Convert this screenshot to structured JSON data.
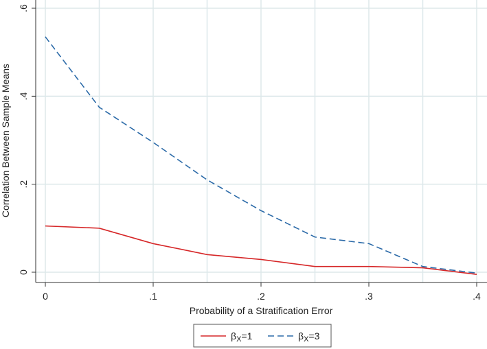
{
  "chart_data": {
    "type": "line",
    "title": "",
    "xlabel": "Probability of a Stratification Error",
    "ylabel": "Correlation Between Sample Means",
    "xlim": [
      0,
      0.4
    ],
    "ylim": [
      0,
      0.6
    ],
    "xticks": [
      0,
      0.1,
      0.2,
      0.3,
      0.4
    ],
    "xtick_labels": [
      "0",
      ".1",
      ".2",
      ".3",
      ".4"
    ],
    "yticks": [
      0,
      0.2,
      0.4,
      0.6
    ],
    "ytick_labels": [
      "0",
      ".2",
      ".4",
      ".6"
    ],
    "grid": true,
    "legend_position": "bottom",
    "x": [
      0,
      0.05,
      0.1,
      0.15,
      0.2,
      0.25,
      0.3,
      0.35,
      0.4
    ],
    "series": [
      {
        "name": "βX=1",
        "name_main": "β",
        "name_sub": "X",
        "name_suffix": "=1",
        "color": "#d62728",
        "style": "solid",
        "values": [
          0.105,
          0.1,
          0.065,
          0.04,
          0.029,
          0.013,
          0.013,
          0.01,
          -0.005
        ]
      },
      {
        "name": "βX=3",
        "name_main": "β",
        "name_sub": "X",
        "name_suffix": "=3",
        "color": "#2b6aa8",
        "style": "dashed",
        "values": [
          0.535,
          0.375,
          0.295,
          0.21,
          0.14,
          0.08,
          0.065,
          0.013,
          -0.002
        ]
      }
    ]
  }
}
